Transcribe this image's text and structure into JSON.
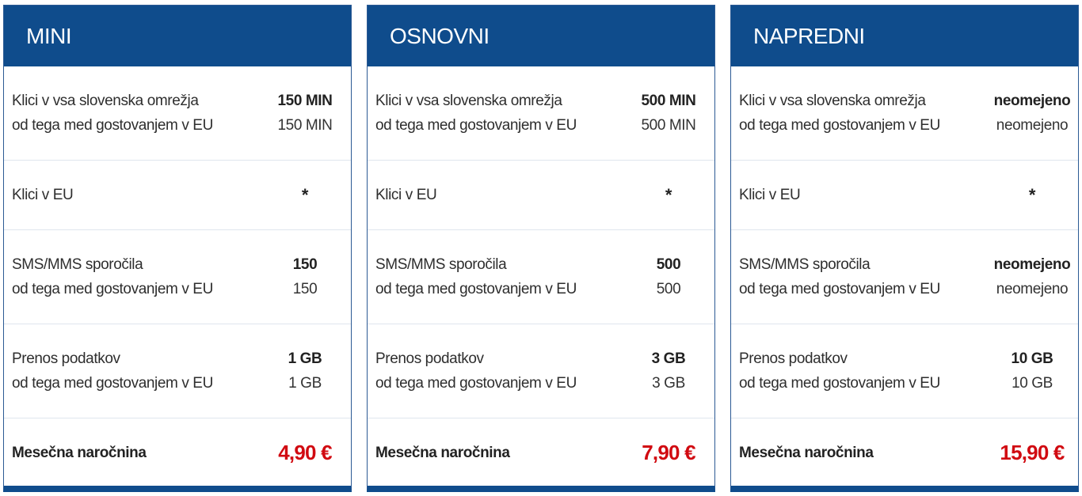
{
  "labels": {
    "calls": "Klici v vsa slovenska omrežja",
    "roaming": "od tega med gostovanjem v EU",
    "calls_eu": "Klici v EU",
    "sms": "SMS/MMS sporočila",
    "data": "Prenos podatkov",
    "monthly": "Mesečna naročnina"
  },
  "colors": {
    "header_blue": "#0f4c8c",
    "price_red": "#d10a11"
  },
  "plans": [
    {
      "name": "MINI",
      "calls": "150 MIN",
      "calls_roaming": "150 MIN",
      "calls_eu": "*",
      "sms": "150",
      "sms_roaming": "150",
      "data": "1 GB",
      "data_roaming": "1 GB",
      "price": "4,90 €"
    },
    {
      "name": "OSNOVNI",
      "calls": "500 MIN",
      "calls_roaming": "500 MIN",
      "calls_eu": "*",
      "sms": "500",
      "sms_roaming": "500",
      "data": "3 GB",
      "data_roaming": "3 GB",
      "price": "7,90 €"
    },
    {
      "name": "NAPREDNI",
      "calls": "neomejeno",
      "calls_roaming": "neomejeno",
      "calls_eu": "*",
      "sms": "neomejeno",
      "sms_roaming": "neomejeno",
      "data": "10 GB",
      "data_roaming": "10 GB",
      "price": "15,90 €"
    }
  ]
}
